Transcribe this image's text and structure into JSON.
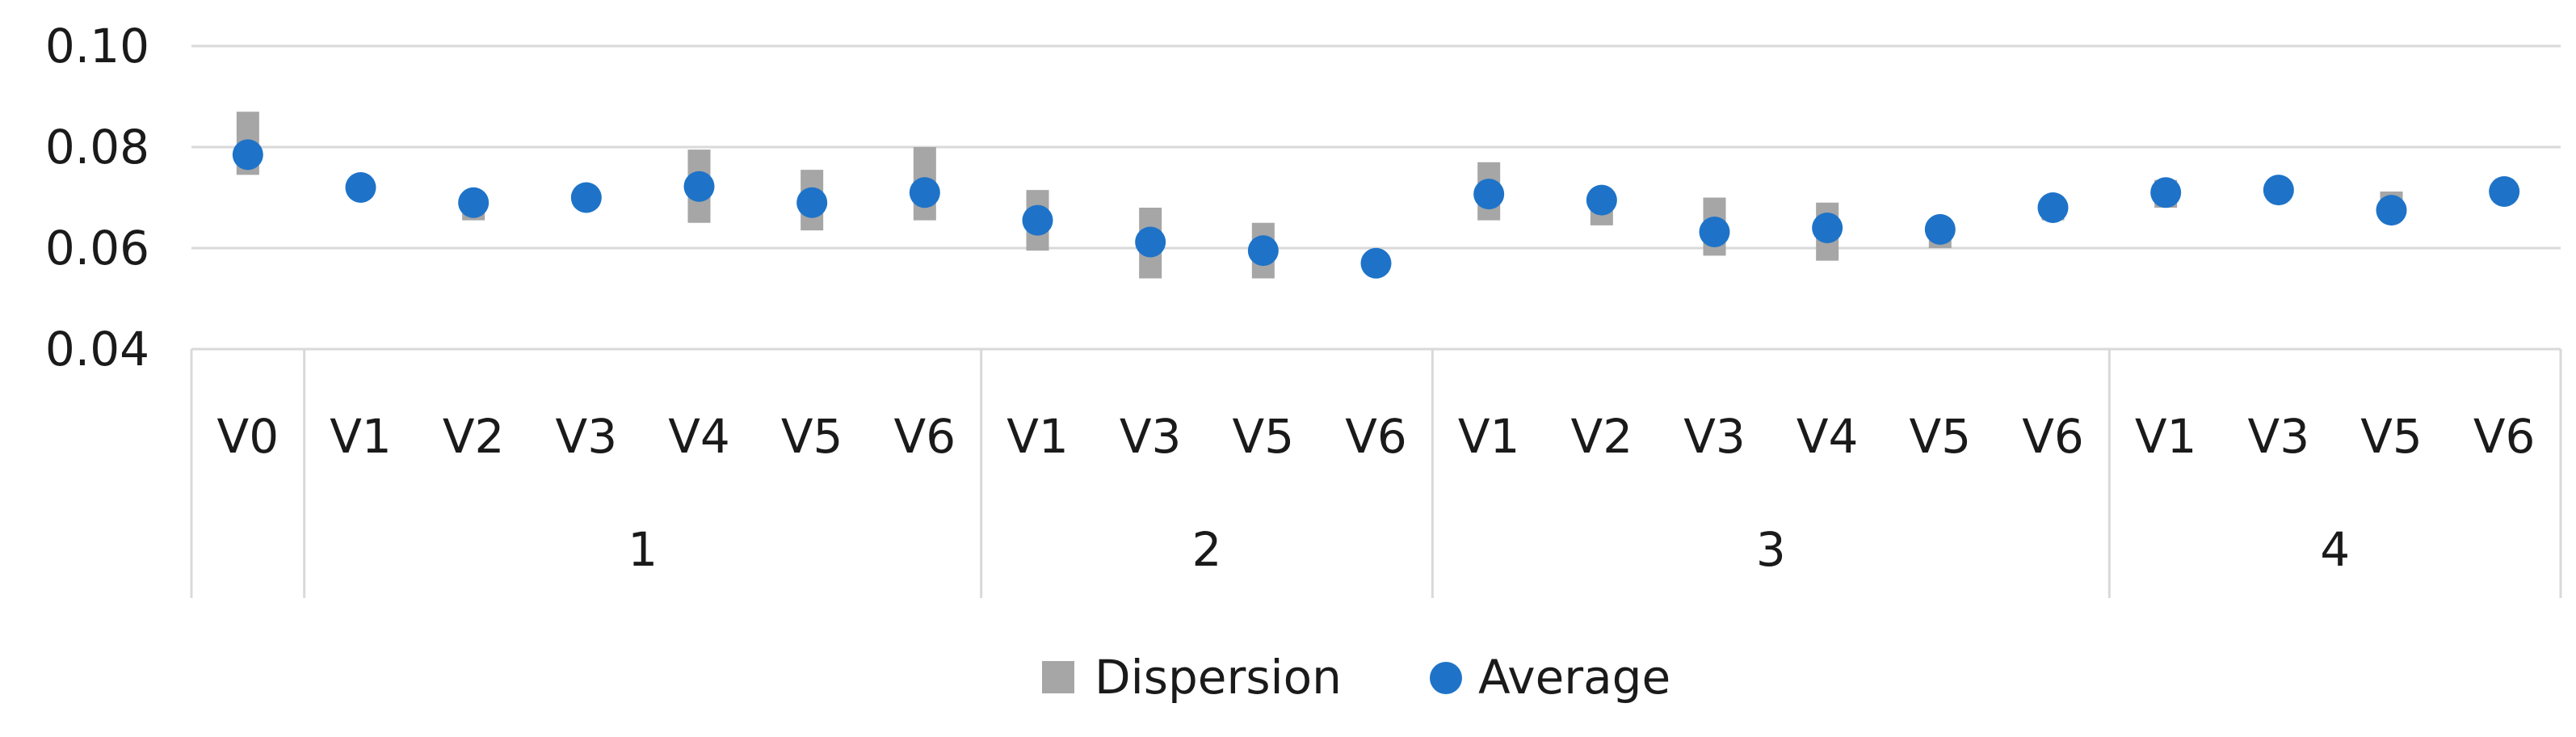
{
  "chart_data": {
    "type": "scatter",
    "title": "",
    "xlabel": "",
    "ylabel": "",
    "ylim": [
      0.04,
      0.1
    ],
    "yticks": [
      "0.04",
      "0.06",
      "0.08",
      "0.10"
    ],
    "ytick_values": [
      0.04,
      0.06,
      0.08,
      0.1
    ],
    "grid": "horizontal",
    "legend_position": "bottom",
    "groups": [
      {
        "label": "",
        "start": 0,
        "count": 1
      },
      {
        "label": "1",
        "start": 1,
        "count": 6
      },
      {
        "label": "2",
        "start": 7,
        "count": 4
      },
      {
        "label": "3",
        "start": 11,
        "count": 6
      },
      {
        "label": "4",
        "start": 17,
        "count": 4
      }
    ],
    "categories": [
      "V0",
      "V1",
      "V2",
      "V3",
      "V4",
      "V5",
      "V6",
      "V1",
      "V3",
      "V5",
      "V6",
      "V1",
      "V2",
      "V3",
      "V4",
      "V5",
      "V6",
      "V1",
      "V3",
      "V5",
      "V6"
    ],
    "series": [
      {
        "name": "Dispersion",
        "kind": "range-bar",
        "color": "#a6a6a6",
        "low": [
          0.0745,
          0.0712,
          0.0655,
          0.0688,
          0.065,
          0.0635,
          0.0655,
          0.0595,
          0.054,
          0.054,
          0.0562,
          0.0655,
          0.0645,
          0.0585,
          0.0575,
          0.06,
          0.0655,
          0.068,
          0.07,
          0.0655,
          0.07
        ],
        "high": [
          0.087,
          0.0728,
          0.071,
          0.0708,
          0.0795,
          0.0755,
          0.08,
          0.0715,
          0.068,
          0.065,
          0.0578,
          0.077,
          0.071,
          0.07,
          0.069,
          0.0655,
          0.0695,
          0.0735,
          0.0725,
          0.0712,
          0.0722
        ]
      },
      {
        "name": "Average",
        "kind": "marker",
        "color": "#1e73c8",
        "values": [
          0.0785,
          0.072,
          0.069,
          0.07,
          0.0722,
          0.069,
          0.071,
          0.0655,
          0.0612,
          0.0595,
          0.057,
          0.0707,
          0.0695,
          0.0632,
          0.064,
          0.0637,
          0.068,
          0.071,
          0.0715,
          0.0675,
          0.0712
        ]
      }
    ]
  }
}
